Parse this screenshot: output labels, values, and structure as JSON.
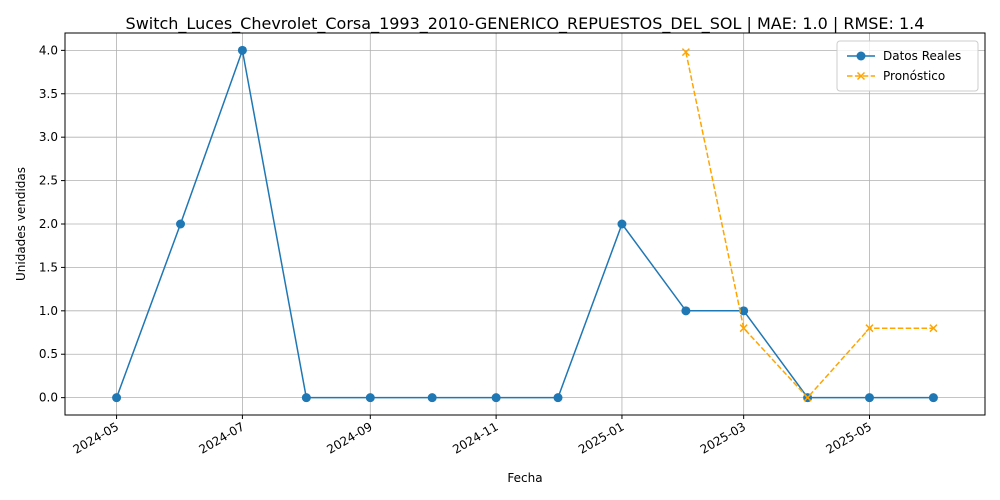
{
  "chart_data": {
    "type": "line",
    "title": "Switch_Luces_Chevrolet_Corsa_1993_2010-GENERICO_REPUESTOS_DEL_SOL | MAE: 1.0 | RMSE: 1.4",
    "xlabel": "Fecha",
    "ylabel": "Unidades vendidas",
    "ylim": [
      -0.2,
      4.2
    ],
    "xlim": [
      "2024-04-06",
      "2025-06-26"
    ],
    "grid": true,
    "legend_position": "top-right",
    "x_ticks": [
      "2024-05",
      "2024-07",
      "2024-09",
      "2024-11",
      "2025-01",
      "2025-03",
      "2025-05"
    ],
    "y_ticks": [
      "0.0",
      "0.5",
      "1.0",
      "1.5",
      "2.0",
      "2.5",
      "3.0",
      "3.5",
      "4.0"
    ],
    "series": [
      {
        "name": "Datos Reales",
        "color": "#1f77b4",
        "line_style": "solid",
        "marker": "circle",
        "x": [
          "2024-05-01",
          "2024-06-01",
          "2024-07-01",
          "2024-08-01",
          "2024-09-01",
          "2024-10-01",
          "2024-11-01",
          "2024-12-01",
          "2025-01-01",
          "2025-02-01",
          "2025-03-01",
          "2025-04-01",
          "2025-05-01",
          "2025-06-01"
        ],
        "values": [
          0,
          2,
          4,
          0,
          0,
          0,
          0,
          0,
          2,
          1,
          1,
          0,
          0,
          0
        ]
      },
      {
        "name": "Pronóstico",
        "color": "#ffa500",
        "line_style": "dashed",
        "marker": "x",
        "x": [
          "2025-02-01",
          "2025-03-01",
          "2025-04-01",
          "2025-05-01",
          "2025-06-01"
        ],
        "values": [
          3.98,
          0.8,
          0.0,
          0.8,
          0.8
        ]
      }
    ]
  }
}
